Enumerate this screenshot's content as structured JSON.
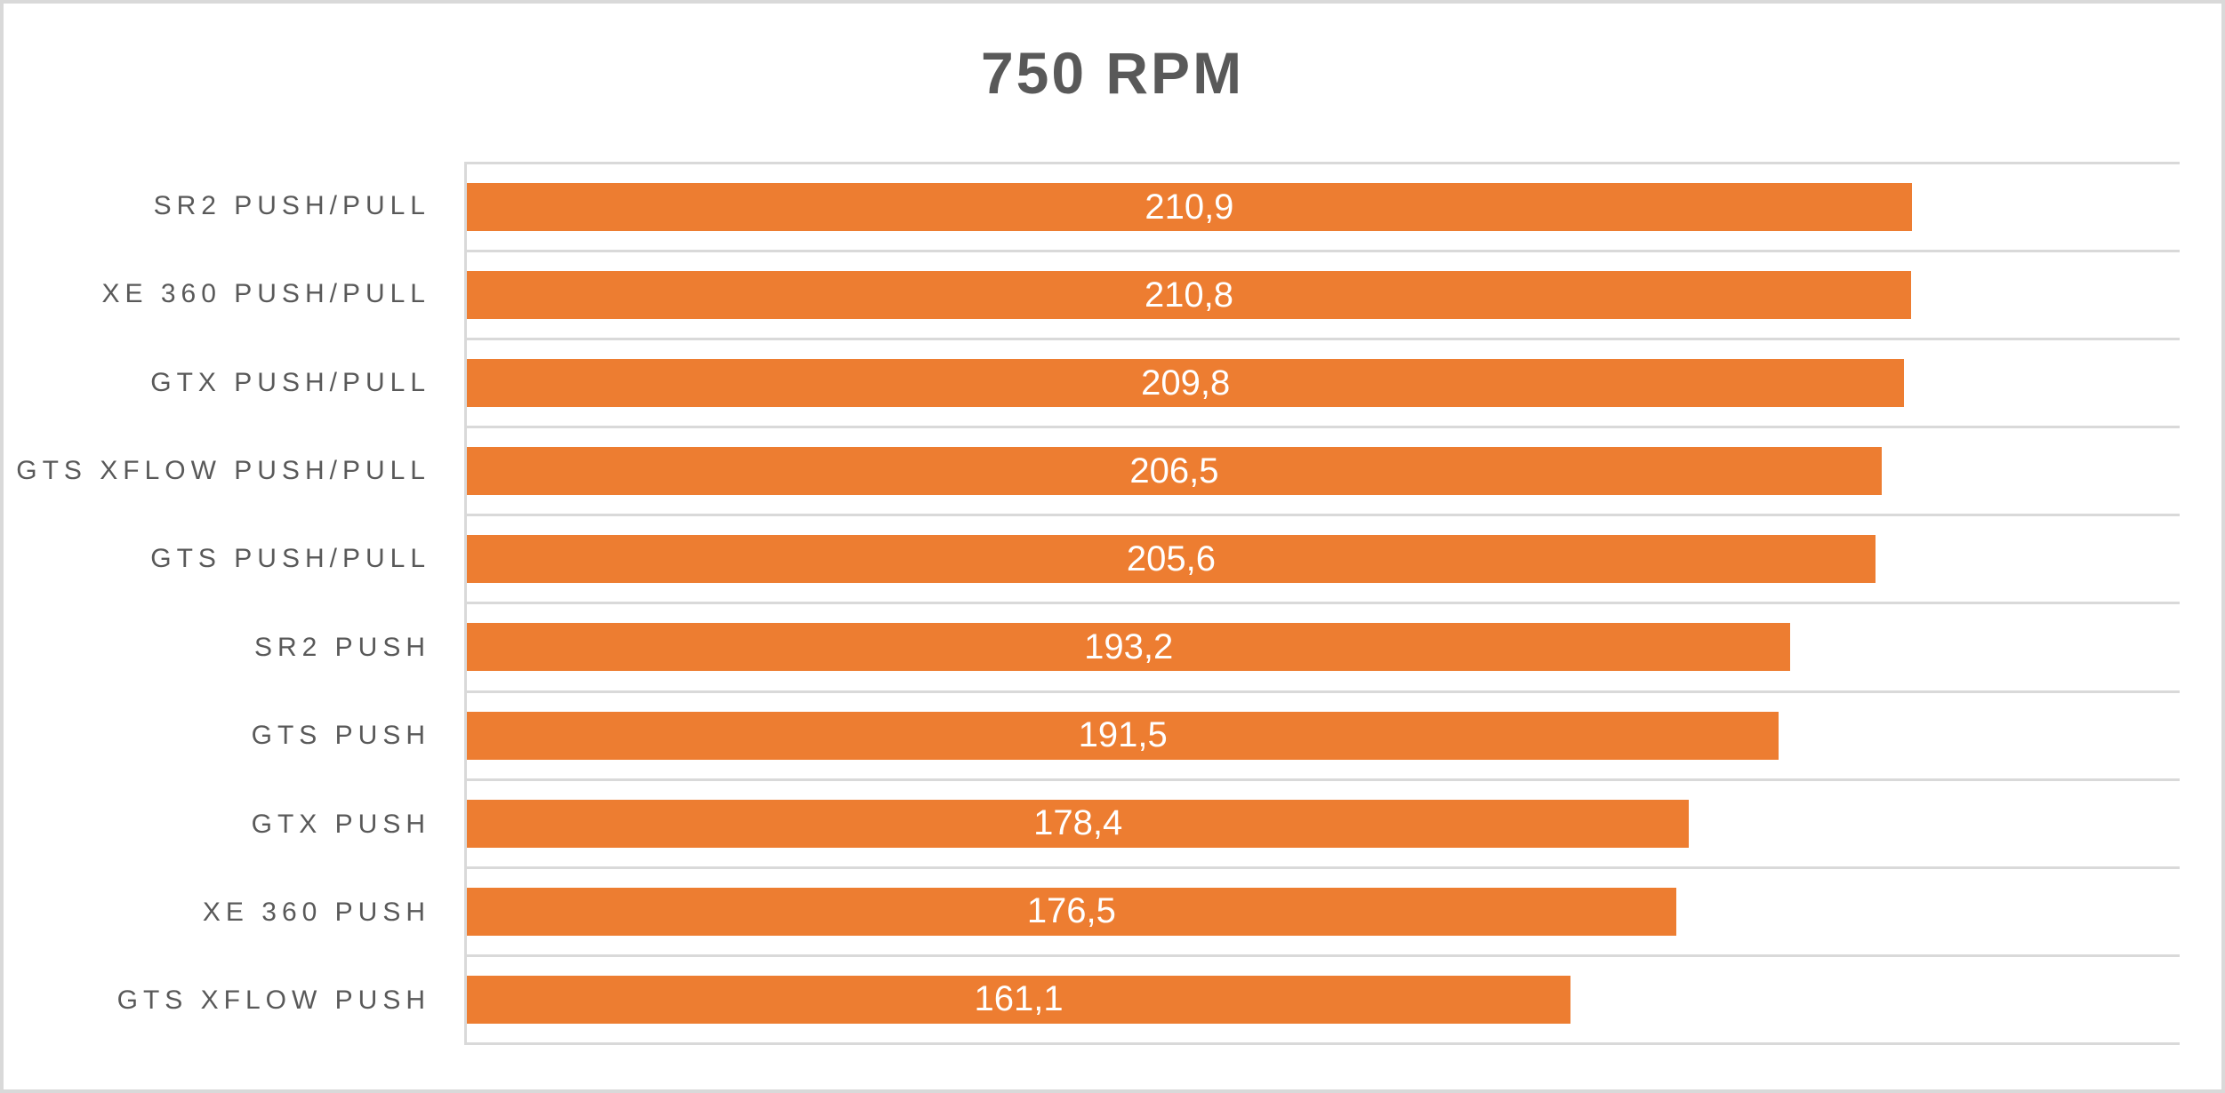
{
  "title": {
    "text": "750 RPM"
  },
  "colors": {
    "bar": "#ED7D31",
    "title_text": "#595959",
    "category_text": "#595959",
    "value_text": "#FFFFFF",
    "gridline": "#D9D9D9",
    "frame_border": "#D9D9D9",
    "background": "#FFFFFF"
  },
  "chart_data": {
    "type": "bar",
    "orientation": "horizontal",
    "title": "750 RPM",
    "categories": [
      "SR2 PUSH/PULL",
      "XE 360 PUSH/PULL",
      "GTX PUSH/PULL",
      "GTS XFLOW PUSH/PULL",
      "GTS PUSH/PULL",
      "SR2 PUSH",
      "GTS PUSH",
      "GTX PUSH",
      "XE 360 PUSH",
      "GTS XFLOW PUSH"
    ],
    "values": [
      210.9,
      210.8,
      209.8,
      206.5,
      205.6,
      193.2,
      191.5,
      178.4,
      176.5,
      161.1
    ],
    "value_labels": [
      "210,9",
      "210,8",
      "209,8",
      "206,5",
      "205,6",
      "193,2",
      "191,5",
      "178,4",
      "176,5",
      "161,1"
    ],
    "xlabel": "",
    "ylabel": "",
    "xlim": [
      0,
      250
    ],
    "value_axis_tick_labels_visible": false,
    "grid": "horizontal category separator lines",
    "legend": "none",
    "data_label_position": "inside-center",
    "decimal_separator": ","
  }
}
